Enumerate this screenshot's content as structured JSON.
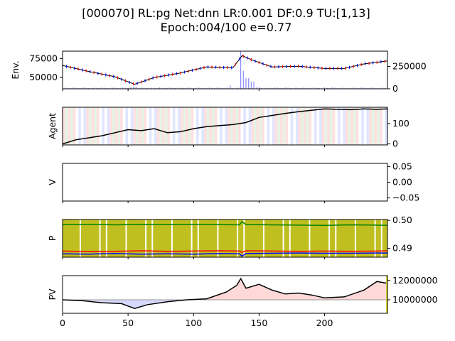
{
  "chart_data": {
    "type": "line",
    "title_line1": "[000070] RL:pg Net:dnn LR:0.001 DF:0.9 TU:[1,13]",
    "title_line2": "Epoch:004/100 e=0.77",
    "x_range": [
      0,
      248
    ],
    "x_ticks": [
      "0",
      "50",
      "100",
      "150",
      "200"
    ],
    "panels": [
      {
        "ylabel": "Env.",
        "left_ticks": [
          "50000",
          "75000"
        ],
        "right_ticks": [
          "0",
          "250000"
        ],
        "series": [
          {
            "name": "",
            "x": [
              0,
              20,
              40,
              55,
              70,
              90,
              110,
              130,
              137,
              145,
              160,
              180,
              200,
              215,
              230,
              248
            ],
            "y": [
              66000,
              58000,
              51000,
              41000,
              50000,
              56000,
              64000,
              63000,
              79000,
              73000,
              64000,
              65000,
              62000,
              62000,
              68000,
              72000
            ]
          }
        ],
        "volume": {
          "x": [
            55,
            128,
            137,
            139,
            141,
            145,
            150,
            200
          ],
          "y": [
            25000,
            40000,
            420000,
            200000,
            120000,
            80000,
            20000,
            15000
          ]
        },
        "colors": {
          "line": "#000000",
          "up": "#ff0000",
          "down": "#0000ff",
          "volume": "#8a8aff"
        }
      },
      {
        "ylabel": "Agent",
        "right_ticks": [
          "0",
          "100"
        ],
        "series": [
          {
            "name": "",
            "x": [
              0,
              10,
              20,
              30,
              40,
              50,
              60,
              70,
              80,
              90,
              100,
              110,
              120,
              130,
              140,
              150,
              160,
              170,
              180,
              190,
              200,
              210,
              220,
              230,
              240,
              248
            ],
            "y": [
              0,
              20,
              30,
              40,
              55,
              70,
              65,
              75,
              55,
              60,
              75,
              85,
              90,
              95,
              105,
              130,
              140,
              150,
              158,
              165,
              172,
              170,
              168,
              172,
              170,
              172
            ]
          }
        ],
        "colors": {
          "line": "#000000"
        }
      },
      {
        "ylabel": "V",
        "right_ticks": [
          "−0.05",
          "0.00",
          "0.05"
        ],
        "series": []
      },
      {
        "ylabel": "P",
        "right_ticks": [
          "0.49",
          "0.50"
        ],
        "series": [
          {
            "name": "",
            "x": [
              0,
              20,
              40,
              60,
              80,
              100,
              120,
              135,
              137,
              140,
              160,
              180,
              200,
              220,
              240,
              248
            ],
            "y": [
              0.4985,
              0.4986,
              0.4984,
              0.4986,
              0.4985,
              0.4986,
              0.4985,
              0.4984,
              0.4995,
              0.4985,
              0.4984,
              0.4983,
              0.4982,
              0.4984,
              0.4983,
              0.4982
            ]
          },
          {
            "name": "",
            "x": [
              0,
              20,
              40,
              60,
              80,
              100,
              120,
              135,
              137,
              140,
              160,
              180,
              200,
              220,
              240,
              248
            ],
            "y": [
              0.489,
              0.4888,
              0.4889,
              0.4891,
              0.4889,
              0.489,
              0.4891,
              0.489,
              0.4885,
              0.4891,
              0.489,
              0.4889,
              0.489,
              0.4889,
              0.489,
              0.4891
            ]
          },
          {
            "name": "",
            "x": [
              0,
              20,
              40,
              60,
              80,
              100,
              120,
              135,
              137,
              140,
              160,
              180,
              200,
              220,
              240,
              248
            ],
            "y": [
              0.488,
              0.4879,
              0.4881,
              0.4879,
              0.488,
              0.4879,
              0.4881,
              0.488,
              0.4872,
              0.4881,
              0.4882,
              0.4883,
              0.4882,
              0.4882,
              0.4883,
              0.4883
            ]
          }
        ],
        "colors": {
          "lines": [
            "#008000",
            "#ff0000",
            "#0000ff"
          ],
          "band": "#bfbf1f"
        }
      },
      {
        "ylabel": "PV",
        "right_ticks": [
          "10000000",
          "12000000"
        ],
        "baseline": 10000000,
        "series": [
          {
            "name": "",
            "x": [
              0,
              15,
              30,
              45,
              55,
              65,
              80,
              95,
              110,
              125,
              133,
              136,
              140,
              150,
              160,
              170,
              180,
              190,
              200,
              215,
              230,
              240,
              248
            ],
            "y": [
              10000000,
              9900000,
              9700000,
              9600000,
              9100000,
              9500000,
              9800000,
              10000000,
              10100000,
              10800000,
              11500000,
              12200000,
              11200000,
              11600000,
              11000000,
              10600000,
              10700000,
              10500000,
              10200000,
              10300000,
              11000000,
              11900000,
              11700000
            ]
          }
        ],
        "colors": {
          "line": "#000000",
          "above": "#ffd8d8",
          "below": "#d8d8ff"
        }
      }
    ]
  }
}
